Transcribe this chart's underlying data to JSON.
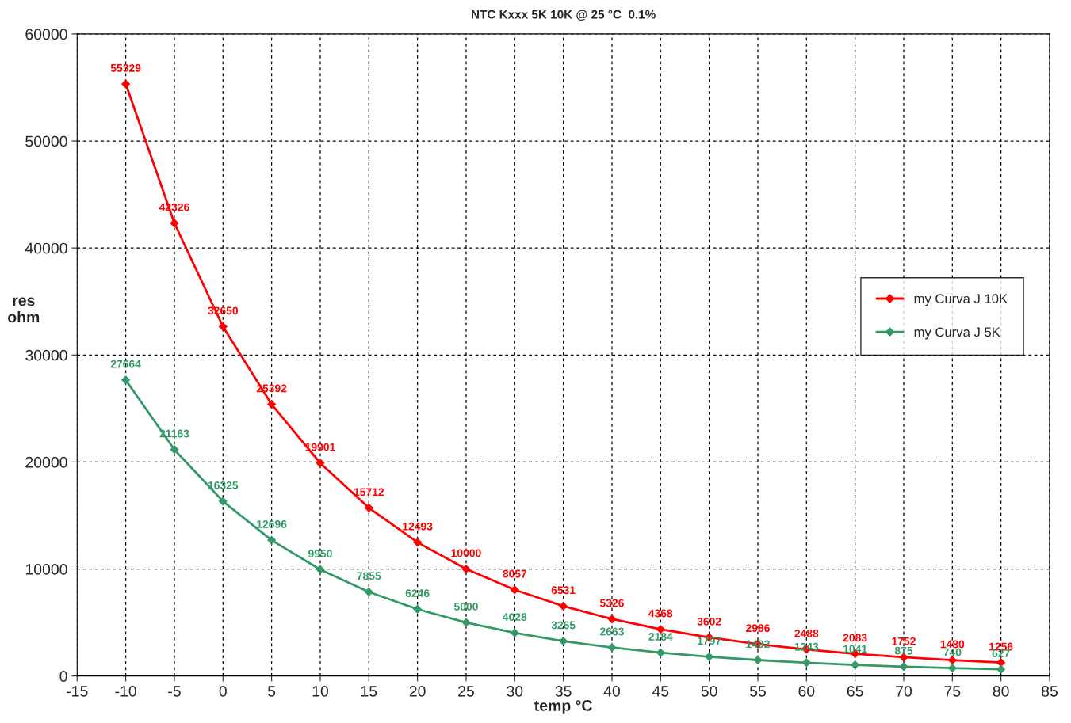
{
  "chart_data": {
    "type": "line",
    "title": "NTC Kxxx 5K 10K @ 25 °C  0.1%",
    "xlabel": "temp °C",
    "ylabel": "res\nohm",
    "x": [
      -10,
      -5,
      0,
      5,
      10,
      15,
      20,
      25,
      30,
      35,
      40,
      45,
      50,
      55,
      60,
      65,
      70,
      75,
      80
    ],
    "series": [
      {
        "name": "my Curva J 10K",
        "color": "#ff0000",
        "values": [
          55329,
          42326,
          32650,
          25392,
          19901,
          15712,
          12493,
          10000,
          8057,
          6531,
          5326,
          4368,
          3602,
          2986,
          2488,
          2083,
          1752,
          1480,
          1256
        ]
      },
      {
        "name": "my Curva J 5K",
        "color": "#339966",
        "values": [
          27664,
          21163,
          16325,
          12696,
          9950,
          7855,
          6246,
          5000,
          4028,
          3265,
          2663,
          2184,
          1797,
          1492,
          1243,
          1041,
          875,
          740,
          627
        ]
      }
    ],
    "xlim": [
      -15,
      85
    ],
    "xticks": [
      -15,
      -10,
      -5,
      0,
      5,
      10,
      15,
      20,
      25,
      30,
      35,
      40,
      45,
      50,
      55,
      60,
      65,
      70,
      75,
      80,
      85
    ],
    "ylim": [
      0,
      60000
    ],
    "yticks": [
      0,
      10000,
      20000,
      30000,
      40000,
      50000,
      60000
    ],
    "grid": true,
    "legend": "right",
    "marker": "diamond",
    "line_style": "solid",
    "data_labels": true
  }
}
